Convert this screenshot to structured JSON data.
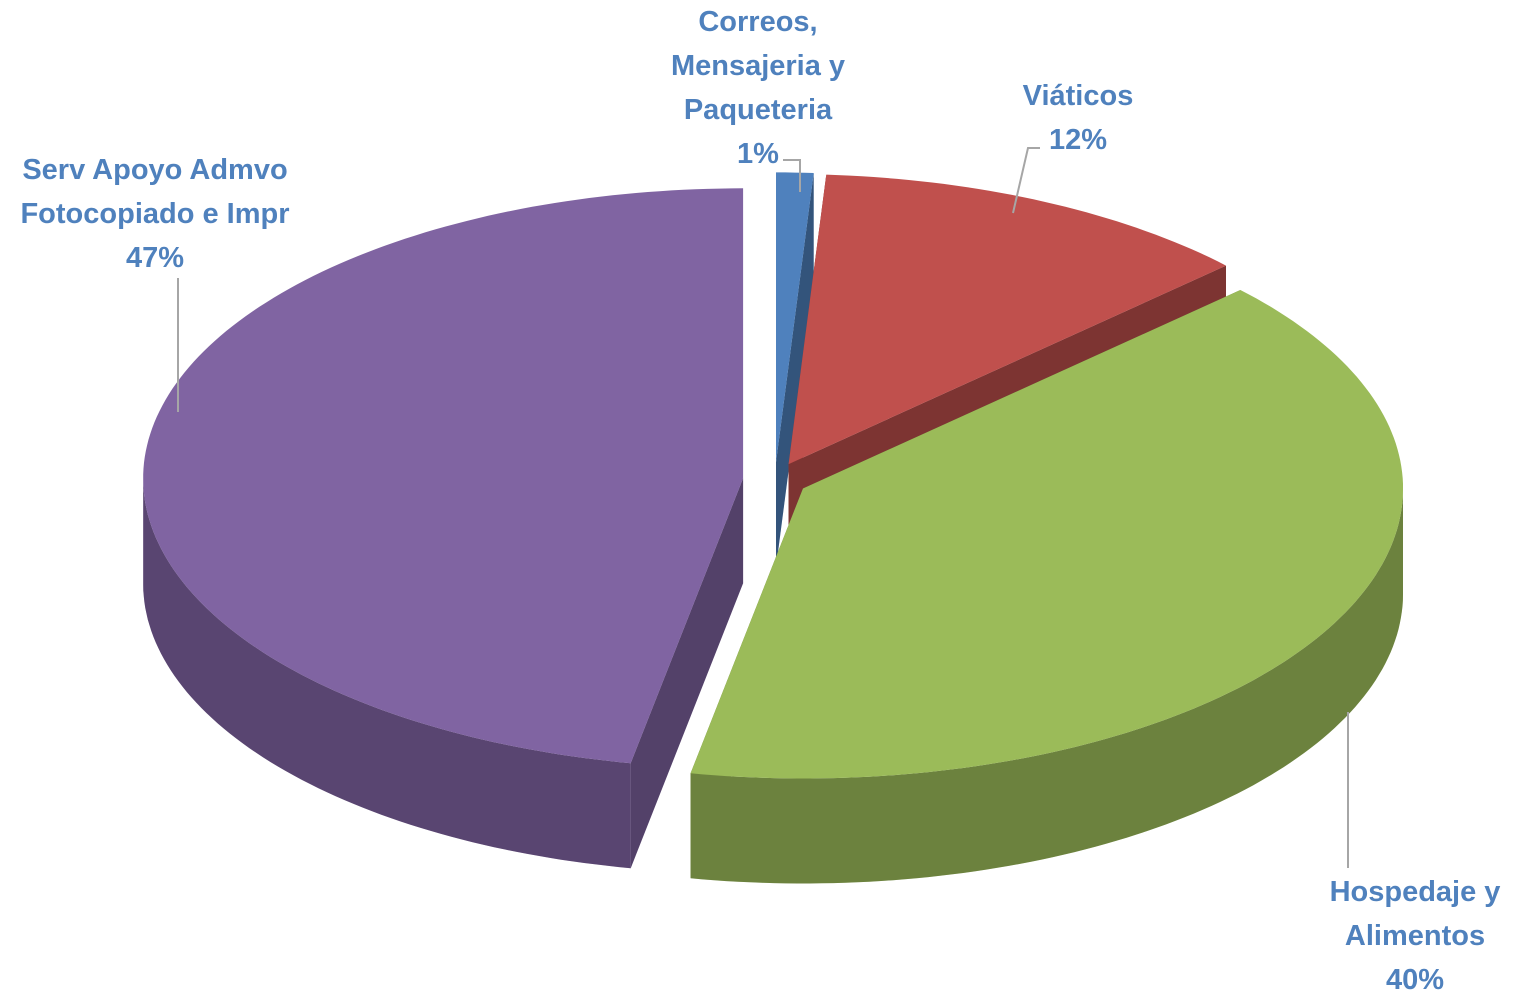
{
  "chart_data": {
    "type": "pie",
    "categories": [
      "Correos, Mensajeria y Paqueteria",
      "Viáticos",
      "Hospedaje y Alimentos",
      "Serv Apoyo Admvo Fotocopiado e Impr"
    ],
    "values": [
      1,
      12,
      40,
      47
    ],
    "value_labels": [
      "1%",
      "12%",
      "40%",
      "47%"
    ],
    "colors": [
      "#4f81bd",
      "#c0504d",
      "#9bbb59",
      "#8064a2"
    ]
  }
}
